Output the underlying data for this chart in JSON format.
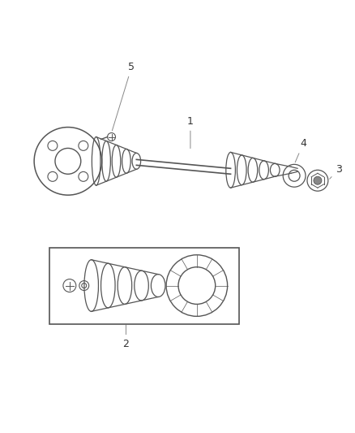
{
  "bg_color": "#ffffff",
  "line_color": "#555555",
  "label_color": "#333333",
  "fig_width": 4.39,
  "fig_height": 5.33,
  "dpi": 100,
  "xlim": [
    0,
    439
  ],
  "ylim": [
    0,
    533
  ]
}
